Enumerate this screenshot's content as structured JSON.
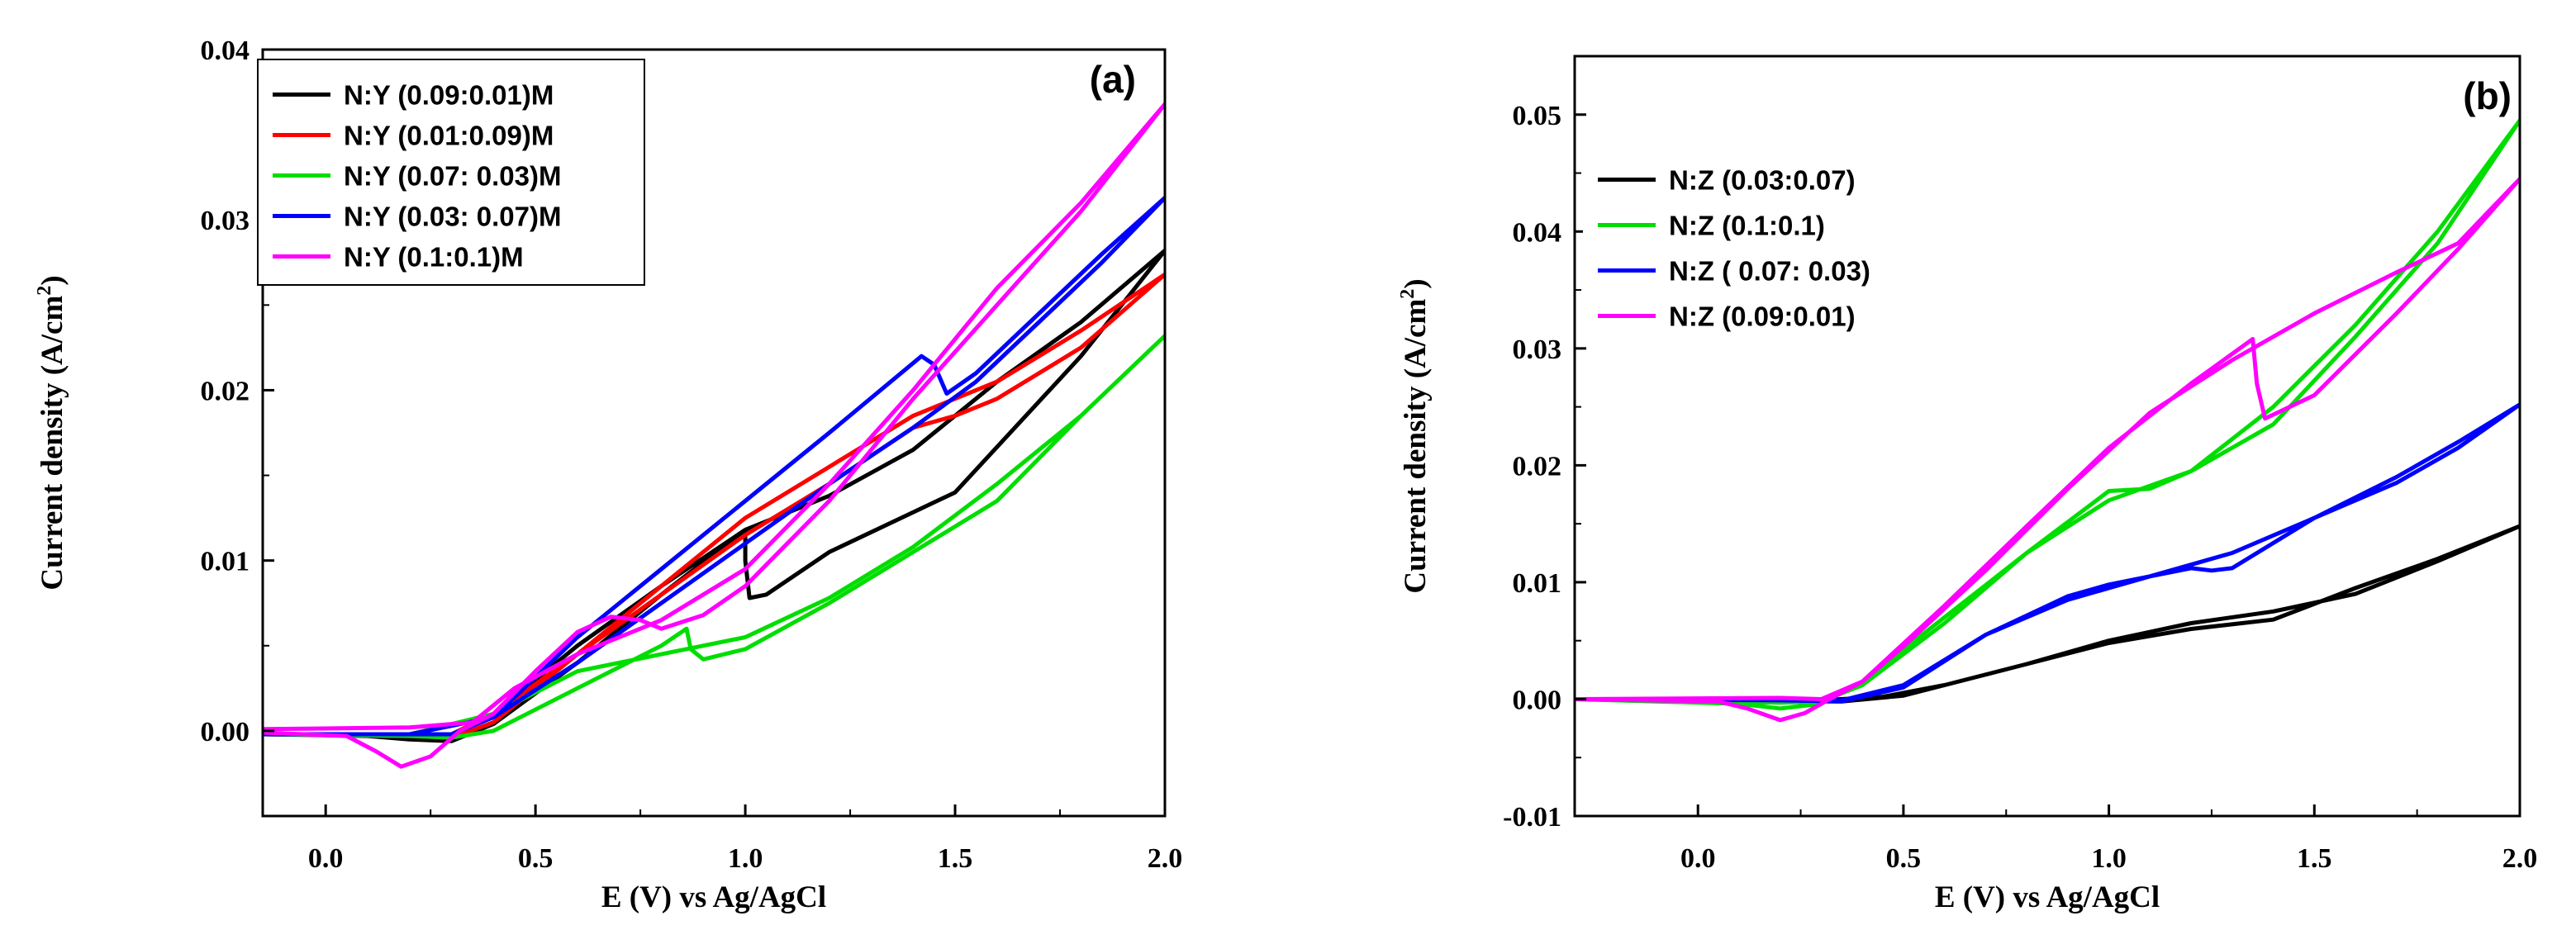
{
  "chart_data": [
    {
      "panel_label": "(a)",
      "type": "line",
      "xlabel": "E (V) vs Ag/AgCl",
      "ylabel_main": "Current density (A/cm",
      "ylabel_sup": "2",
      "ylabel_tail": ")",
      "xlim": [
        -0.15,
        2.0
      ],
      "ylim": [
        -0.005,
        0.04
      ],
      "xticks": [
        0.0,
        0.5,
        1.0,
        1.5,
        2.0
      ],
      "xtick_labels": [
        "0.0",
        "0.5",
        "1.0",
        "1.5",
        "2.0"
      ],
      "yticks": [
        0.0,
        0.01,
        0.02,
        0.03,
        0.04
      ],
      "ytick_labels": [
        "0.00",
        "0.01",
        "0.02",
        "0.03",
        "0.04"
      ],
      "legend_position": "top-left",
      "series": [
        {
          "name": "N:Y (0.09:0.01)M",
          "color": "#000000",
          "x": [
            -0.15,
            0.1,
            0.2,
            0.3,
            0.4,
            0.6,
            0.8,
            1.0,
            1.0,
            1.01,
            1.05,
            1.2,
            1.5,
            1.8,
            2.0,
            1.8,
            1.6,
            1.4,
            1.2,
            1.0,
            0.8,
            0.6,
            0.4,
            0.3,
            0.1,
            -0.15
          ],
          "y": [
            -0.0002,
            -0.0003,
            -0.0005,
            -0.0006,
            0.0004,
            0.004,
            0.008,
            0.0118,
            0.01,
            0.0078,
            0.008,
            0.0105,
            0.014,
            0.022,
            0.0282,
            0.024,
            0.0205,
            0.0165,
            0.0138,
            0.0118,
            0.0085,
            0.005,
            0.001,
            -0.0002,
            -0.0002,
            -0.0002
          ]
        },
        {
          "name": "N:Y (0.01:0.09)M",
          "color": "#ff0000",
          "x": [
            -0.15,
            0.2,
            0.3,
            0.4,
            0.6,
            0.8,
            1.0,
            1.2,
            1.4,
            1.6,
            1.8,
            2.0,
            1.8,
            1.6,
            1.5,
            1.4,
            1.2,
            1.0,
            0.8,
            0.6,
            0.4,
            0.3,
            0.2,
            -0.15
          ],
          "y": [
            -0.0002,
            -0.0003,
            -0.0004,
            0.0005,
            0.0045,
            0.0085,
            0.0125,
            0.0155,
            0.0185,
            0.0205,
            0.0235,
            0.0268,
            0.0225,
            0.0195,
            0.0185,
            0.0178,
            0.0145,
            0.0115,
            0.008,
            0.0045,
            0.001,
            -0.0002,
            -0.0002,
            -0.0002
          ]
        },
        {
          "name": "N:Y (0.07: 0.03)M",
          "color": "#00dd00",
          "x": [
            -0.15,
            0.2,
            0.3,
            0.4,
            0.6,
            0.8,
            0.86,
            0.87,
            0.9,
            1.0,
            1.2,
            1.4,
            1.6,
            1.8,
            2.0,
            1.8,
            1.6,
            1.4,
            1.2,
            1.0,
            0.8,
            0.6,
            0.4,
            0.2,
            -0.15
          ],
          "y": [
            -0.0002,
            -0.0003,
            -0.0004,
            0.0,
            0.0025,
            0.005,
            0.006,
            0.0048,
            0.0042,
            0.0048,
            0.0075,
            0.0105,
            0.0135,
            0.0185,
            0.0232,
            0.0185,
            0.0145,
            0.0108,
            0.0078,
            0.0055,
            0.0045,
            0.0035,
            0.001,
            -0.0002,
            -0.0002
          ]
        },
        {
          "name": "N:Y (0.03: 0.07)M",
          "color": "#0000ff",
          "x": [
            -0.15,
            0.2,
            0.3,
            0.4,
            0.6,
            0.8,
            1.0,
            1.2,
            1.42,
            1.45,
            1.48,
            1.55,
            1.7,
            1.85,
            2.0,
            1.85,
            1.7,
            1.55,
            1.4,
            1.2,
            1.0,
            0.8,
            0.6,
            0.4,
            0.2,
            -0.15
          ],
          "y": [
            -0.0002,
            -0.0002,
            -0.0002,
            0.0008,
            0.0055,
            0.0095,
            0.0135,
            0.0175,
            0.022,
            0.0215,
            0.0198,
            0.021,
            0.0245,
            0.028,
            0.0313,
            0.0275,
            0.024,
            0.0205,
            0.0178,
            0.0145,
            0.011,
            0.0075,
            0.004,
            0.0008,
            -0.0002,
            -0.0002
          ]
        },
        {
          "name": "N:Y (0.1:0.1)M",
          "color": "#ff00ff",
          "x": [
            -0.15,
            0.05,
            0.12,
            0.18,
            0.25,
            0.32,
            0.4,
            0.5,
            0.6,
            0.68,
            0.75,
            0.8,
            0.9,
            1.0,
            1.2,
            1.4,
            1.6,
            1.8,
            2.0,
            1.8,
            1.6,
            1.4,
            1.2,
            1.0,
            0.8,
            0.6,
            0.45,
            0.35,
            0.2,
            -0.15
          ],
          "y": [
            -0.0001,
            -0.0003,
            -0.0012,
            -0.0021,
            -0.0015,
            0.0,
            0.001,
            0.0035,
            0.0058,
            0.0067,
            0.0065,
            0.006,
            0.0068,
            0.0085,
            0.0135,
            0.0195,
            0.025,
            0.0305,
            0.0368,
            0.031,
            0.026,
            0.02,
            0.0145,
            0.0095,
            0.0065,
            0.0045,
            0.0025,
            0.0005,
            0.0002,
            0.0001
          ]
        }
      ]
    },
    {
      "panel_label": "(b)",
      "type": "line",
      "xlabel": "E (V) vs Ag/AgCl",
      "ylabel_main": "Current density (A/cm",
      "ylabel_sup": "2",
      "ylabel_tail": ")",
      "xlim": [
        -0.3,
        2.0
      ],
      "ylim": [
        -0.01,
        0.055
      ],
      "xticks": [
        0.0,
        0.5,
        1.0,
        1.5,
        2.0
      ],
      "xtick_labels": [
        "0.0",
        "0.5",
        "1.0",
        "1.5",
        "2.0"
      ],
      "yticks": [
        -0.01,
        0.0,
        0.01,
        0.02,
        0.03,
        0.04,
        0.05
      ],
      "ytick_labels": [
        "-0.01",
        "0.00",
        "0.01",
        "0.02",
        "0.03",
        "0.04",
        "0.05"
      ],
      "legend_position": "upper-left",
      "series": [
        {
          "name": "N:Z (0.03:0.07)",
          "color": "#000000",
          "x": [
            -0.3,
            0.2,
            0.35,
            0.5,
            0.6,
            0.8,
            1.0,
            1.2,
            1.4,
            1.6,
            1.8,
            2.0,
            1.8,
            1.6,
            1.4,
            1.2,
            1.0,
            0.8,
            0.6,
            0.45,
            0.3,
            -0.3
          ],
          "y": [
            0.0,
            -0.0002,
            -0.0002,
            0.0003,
            0.0012,
            0.003,
            0.0048,
            0.006,
            0.0068,
            0.0095,
            0.012,
            0.0148,
            0.0118,
            0.009,
            0.0075,
            0.0065,
            0.005,
            0.003,
            0.0012,
            0.0002,
            -0.0001,
            0.0
          ]
        },
        {
          "name": "N:Z (0.1:0.1)",
          "color": "#00dd00",
          "x": [
            -0.3,
            0.1,
            0.2,
            0.3,
            0.4,
            0.6,
            0.8,
            1.0,
            1.1,
            1.2,
            1.4,
            1.6,
            1.8,
            2.0,
            1.8,
            1.6,
            1.4,
            1.2,
            1.0,
            0.8,
            0.6,
            0.4,
            0.3,
            0.2,
            -0.3
          ],
          "y": [
            0.0,
            -0.0004,
            -0.0008,
            -0.0004,
            0.0015,
            0.007,
            0.0125,
            0.0178,
            0.018,
            0.0195,
            0.025,
            0.032,
            0.04,
            0.0495,
            0.039,
            0.031,
            0.0235,
            0.0195,
            0.017,
            0.0125,
            0.0065,
            0.0012,
            -0.0002,
            -0.0003,
            0.0
          ]
        },
        {
          "name": "N:Z ( 0.07: 0.03)",
          "color": "#0000ff",
          "x": [
            -0.3,
            0.2,
            0.35,
            0.5,
            0.7,
            0.9,
            1.0,
            1.1,
            1.2,
            1.25,
            1.3,
            1.5,
            1.7,
            1.85,
            2.0,
            1.85,
            1.7,
            1.5,
            1.3,
            1.1,
            1.0,
            0.9,
            0.7,
            0.5,
            0.35,
            0.2,
            -0.3
          ],
          "y": [
            0.0,
            -0.0001,
            -0.0002,
            0.001,
            0.0055,
            0.0088,
            0.0098,
            0.0105,
            0.0112,
            0.011,
            0.0112,
            0.0155,
            0.019,
            0.022,
            0.0252,
            0.0215,
            0.0185,
            0.0155,
            0.0125,
            0.0105,
            0.0095,
            0.0085,
            0.0055,
            0.0012,
            -0.0001,
            -0.0001,
            0.0
          ]
        },
        {
          "name": "N:Z (0.09:0.01)",
          "color": "#ff00ff",
          "x": [
            -0.3,
            0.05,
            0.12,
            0.2,
            0.26,
            0.32,
            0.4,
            0.6,
            0.8,
            1.0,
            1.2,
            1.35,
            1.36,
            1.38,
            1.5,
            1.7,
            1.85,
            2.0,
            1.85,
            1.7,
            1.5,
            1.3,
            1.1,
            0.9,
            0.7,
            0.5,
            0.4,
            0.3,
            0.2,
            -0.3
          ],
          "y": [
            0.0,
            -0.0002,
            -0.0008,
            -0.0018,
            -0.0012,
            0.0,
            0.0015,
            0.008,
            0.0148,
            0.0215,
            0.027,
            0.0308,
            0.027,
            0.024,
            0.026,
            0.033,
            0.0385,
            0.0445,
            0.039,
            0.0365,
            0.033,
            0.029,
            0.0245,
            0.018,
            0.011,
            0.0045,
            0.0015,
            0.0,
            0.0001,
            0.0
          ]
        }
      ]
    }
  ]
}
